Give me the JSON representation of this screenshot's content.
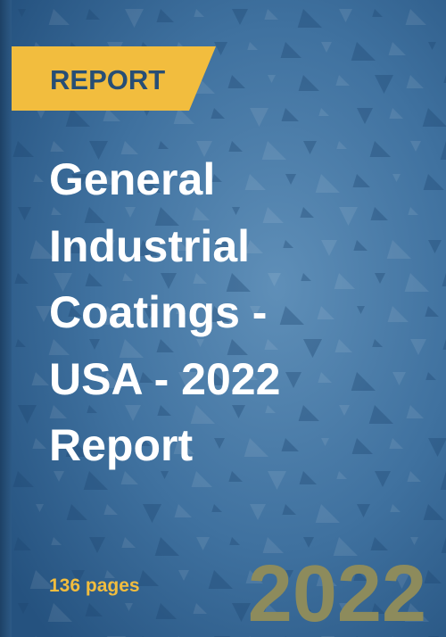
{
  "cover": {
    "tag": "REPORT",
    "title_lines": [
      "General",
      "Industrial",
      "Coatings -",
      "USA - 2022",
      "Report"
    ],
    "pages": "136 pages",
    "year": "2022"
  }
}
